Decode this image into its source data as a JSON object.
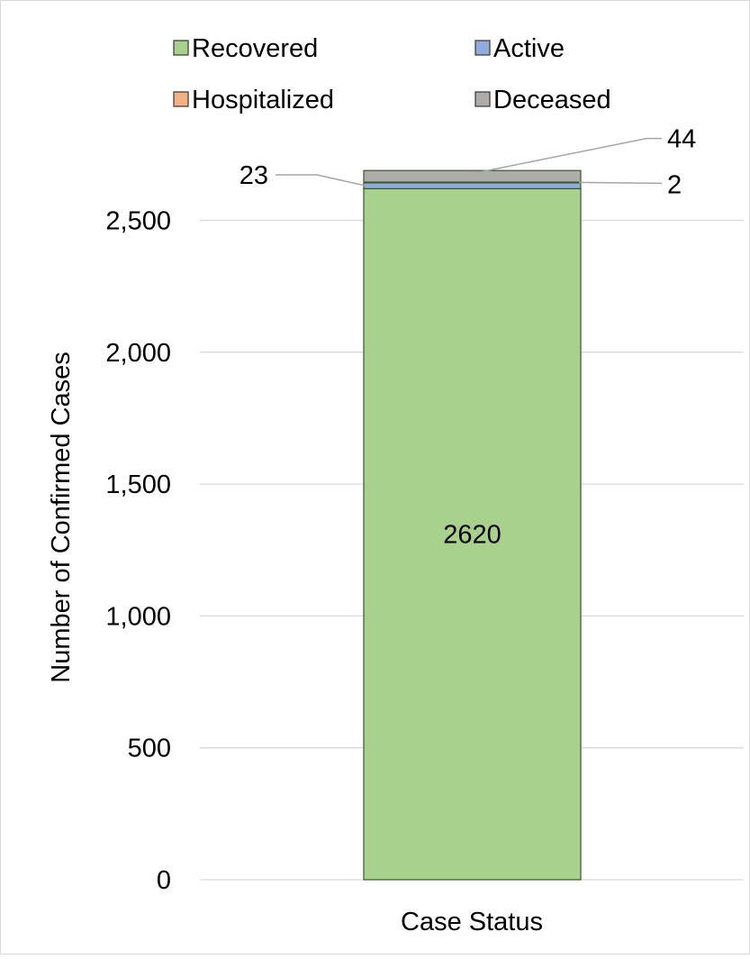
{
  "chart_data": {
    "type": "bar",
    "stacked": true,
    "categories": [
      "Case Status"
    ],
    "xlabel": "Case Status",
    "ylabel": "Number of Confirmed Cases",
    "ylim": [
      0,
      2800
    ],
    "yticks": [
      0,
      500,
      1000,
      1500,
      2000,
      2500
    ],
    "ytick_labels": [
      "0",
      "500",
      "1,000",
      "1,500",
      "2,000",
      "2,500"
    ],
    "grid": true,
    "legend_position": "top",
    "series": [
      {
        "name": "Recovered",
        "values": [
          2620
        ],
        "color": "#a9d18e",
        "label": "2620"
      },
      {
        "name": "Active",
        "values": [
          23
        ],
        "color": "#8faadc",
        "label": "23"
      },
      {
        "name": "Hospitalized",
        "values": [
          2
        ],
        "color": "#f4b183",
        "label": "2"
      },
      {
        "name": "Deceased",
        "values": [
          44
        ],
        "color": "#aeabab",
        "label": "44"
      }
    ]
  }
}
